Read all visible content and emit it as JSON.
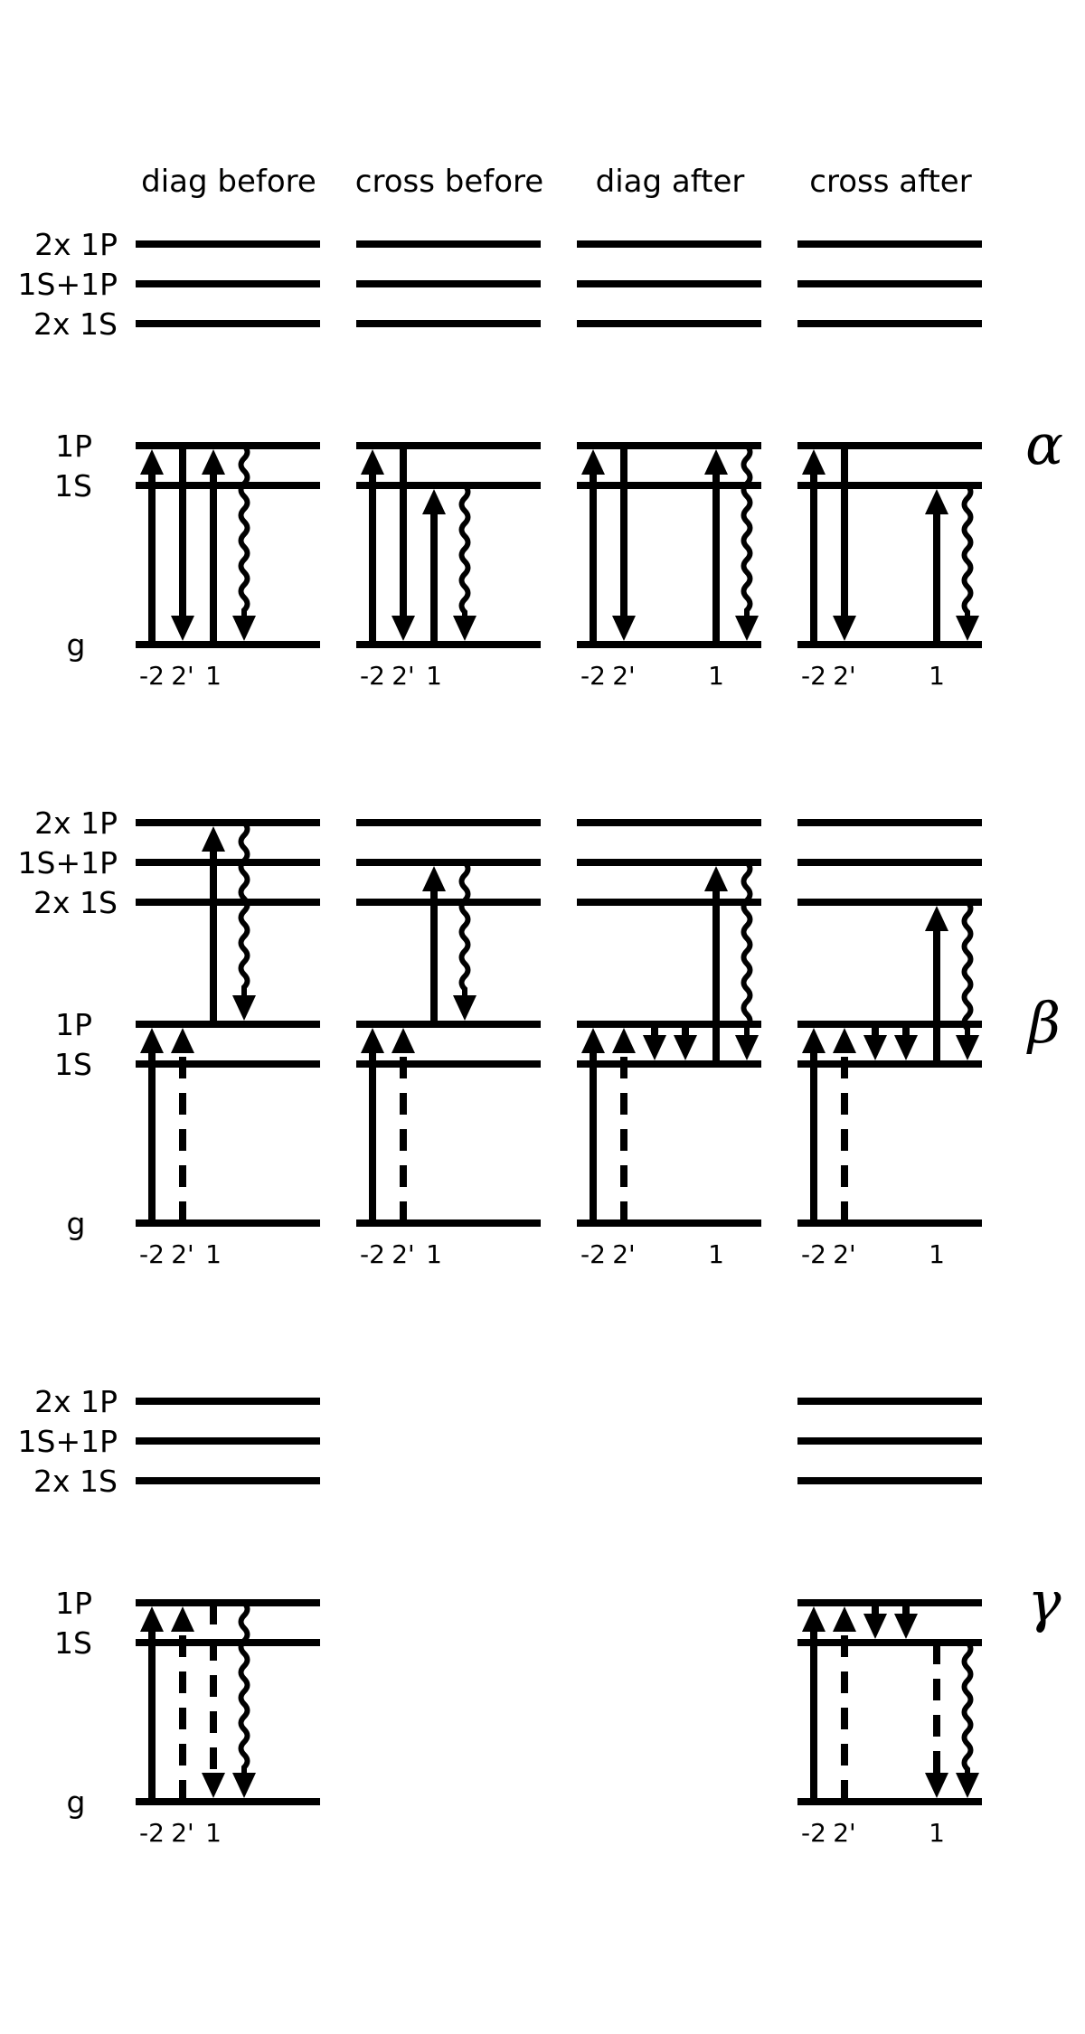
{
  "columns": [
    "diag before",
    "cross before",
    "diag after",
    "cross after"
  ],
  "level_labels": {
    "biexciton": [
      "2x 1P",
      "1S+1P",
      "2x 1S"
    ],
    "exciton": [
      "1P",
      "1S"
    ],
    "ground": "g"
  },
  "pulse_labels": {
    "minus_two": "-2",
    "two_prime": "2'",
    "one": "1"
  },
  "panels": [
    {
      "greek": "α",
      "ticks_present": [
        true,
        true,
        true,
        true
      ],
      "diagrams": [
        {
          "arrows": [
            {
              "slot": "minus_two",
              "from": "g",
              "to": "1P",
              "style": "solid",
              "dir": "up"
            },
            {
              "slot": "two_prime",
              "from": "1P",
              "to": "g",
              "style": "solid",
              "dir": "down"
            },
            {
              "slot": "one",
              "from": "g",
              "to": "1P",
              "style": "solid",
              "dir": "up"
            },
            {
              "slot": "wave",
              "from": "1P",
              "to": "g",
              "style": "wavy",
              "dir": "down"
            }
          ]
        },
        {
          "arrows": [
            {
              "slot": "minus_two",
              "from": "g",
              "to": "1P",
              "style": "solid",
              "dir": "up"
            },
            {
              "slot": "two_prime",
              "from": "1P",
              "to": "g",
              "style": "solid",
              "dir": "down"
            },
            {
              "slot": "one",
              "from": "g",
              "to": "1S",
              "style": "solid",
              "dir": "up"
            },
            {
              "slot": "wave",
              "from": "1S",
              "to": "g",
              "style": "wavy",
              "dir": "down"
            }
          ]
        },
        {
          "arrows": [
            {
              "slot": "minus_two",
              "from": "g",
              "to": "1P",
              "style": "solid",
              "dir": "up"
            },
            {
              "slot": "two_prime",
              "from": "1P",
              "to": "g",
              "style": "solid",
              "dir": "down"
            },
            {
              "slot": "one_far",
              "from": "g",
              "to": "1P",
              "style": "solid",
              "dir": "up"
            },
            {
              "slot": "wave_far",
              "from": "1P",
              "to": "g",
              "style": "wavy",
              "dir": "down"
            }
          ]
        },
        {
          "arrows": [
            {
              "slot": "minus_two",
              "from": "g",
              "to": "1P",
              "style": "solid",
              "dir": "up"
            },
            {
              "slot": "two_prime",
              "from": "1P",
              "to": "g",
              "style": "solid",
              "dir": "down"
            },
            {
              "slot": "one_far",
              "from": "g",
              "to": "1S",
              "style": "solid",
              "dir": "up"
            },
            {
              "slot": "wave_far",
              "from": "1S",
              "to": "g",
              "style": "wavy",
              "dir": "down"
            }
          ]
        }
      ]
    },
    {
      "greek": "β",
      "ticks_present": [
        true,
        true,
        true,
        true
      ],
      "diagrams": [
        {
          "arrows": [
            {
              "slot": "minus_two",
              "from": "g",
              "to": "1P",
              "style": "solid",
              "dir": "up"
            },
            {
              "slot": "two_prime",
              "from": "g",
              "to": "1P",
              "style": "dashed-up",
              "dir": "up"
            },
            {
              "slot": "one",
              "from": "1P",
              "to": "2x 1P",
              "style": "solid",
              "dir": "up"
            },
            {
              "slot": "wave",
              "from": "2x 1P",
              "to": "1P",
              "style": "wavy",
              "dir": "down"
            }
          ]
        },
        {
          "arrows": [
            {
              "slot": "minus_two",
              "from": "g",
              "to": "1P",
              "style": "solid",
              "dir": "up"
            },
            {
              "slot": "two_prime",
              "from": "g",
              "to": "1P",
              "style": "dashed-up",
              "dir": "up"
            },
            {
              "slot": "one",
              "from": "1P",
              "to": "1S+1P",
              "style": "solid",
              "dir": "up"
            },
            {
              "slot": "wave",
              "from": "1S+1P",
              "to": "1P",
              "style": "wavy",
              "dir": "down"
            }
          ]
        },
        {
          "arrows": [
            {
              "slot": "minus_two",
              "from": "g",
              "to": "1P",
              "style": "solid",
              "dir": "up"
            },
            {
              "slot": "two_prime",
              "from": "g",
              "to": "1P",
              "style": "dashed-up",
              "dir": "up"
            },
            {
              "slot": "mid_a",
              "from": "1P",
              "to": "1S",
              "style": "solid",
              "dir": "down"
            },
            {
              "slot": "mid_b",
              "from": "1P",
              "to": "1S",
              "style": "solid",
              "dir": "down"
            },
            {
              "slot": "one_far",
              "from": "1S",
              "to": "1S+1P",
              "style": "solid",
              "dir": "up"
            },
            {
              "slot": "wave_far",
              "from": "1S+1P",
              "to": "1S",
              "style": "wavy",
              "dir": "down"
            }
          ]
        },
        {
          "arrows": [
            {
              "slot": "minus_two",
              "from": "g",
              "to": "1P",
              "style": "solid",
              "dir": "up"
            },
            {
              "slot": "two_prime",
              "from": "g",
              "to": "1P",
              "style": "dashed-up",
              "dir": "up"
            },
            {
              "slot": "mid_a",
              "from": "1P",
              "to": "1S",
              "style": "solid",
              "dir": "down"
            },
            {
              "slot": "mid_b",
              "from": "1P",
              "to": "1S",
              "style": "solid",
              "dir": "down"
            },
            {
              "slot": "one_far",
              "from": "1S",
              "to": "2x 1S",
              "style": "solid",
              "dir": "up"
            },
            {
              "slot": "wave_far",
              "from": "2x 1S",
              "to": "1S",
              "style": "wavy",
              "dir": "down"
            }
          ]
        }
      ]
    },
    {
      "greek": "γ",
      "ticks_present": [
        true,
        false,
        false,
        true
      ],
      "diagrams": [
        {
          "arrows": [
            {
              "slot": "minus_two",
              "from": "g",
              "to": "1P",
              "style": "solid",
              "dir": "up"
            },
            {
              "slot": "two_prime",
              "from": "g",
              "to": "1P",
              "style": "dashed-up",
              "dir": "up"
            },
            {
              "slot": "one",
              "from": "1P",
              "to": "g",
              "style": "dashed-down",
              "dir": "down"
            },
            {
              "slot": "wave",
              "from": "1P",
              "to": "g",
              "style": "wavy",
              "dir": "down"
            }
          ]
        },
        null,
        null,
        {
          "arrows": [
            {
              "slot": "minus_two",
              "from": "g",
              "to": "1P",
              "style": "solid",
              "dir": "up"
            },
            {
              "slot": "two_prime",
              "from": "g",
              "to": "1P",
              "style": "dashed-up",
              "dir": "up"
            },
            {
              "slot": "mid_a",
              "from": "1P",
              "to": "1S",
              "style": "solid",
              "dir": "down"
            },
            {
              "slot": "mid_b",
              "from": "1P",
              "to": "1S",
              "style": "solid",
              "dir": "down"
            },
            {
              "slot": "one_far",
              "from": "1S",
              "to": "g",
              "style": "dashed-down",
              "dir": "down"
            },
            {
              "slot": "wave_far",
              "from": "1S",
              "to": "g",
              "style": "wavy",
              "dir": "down"
            }
          ]
        }
      ]
    }
  ]
}
